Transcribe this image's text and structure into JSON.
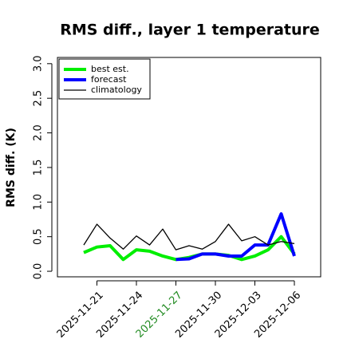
{
  "chart_data": {
    "type": "line",
    "title": "RMS diff., layer 1 temperature",
    "y_label": "RMS diff. (K)",
    "x": [
      "2025-11-20",
      "2025-11-21",
      "2025-11-22",
      "2025-11-23",
      "2025-11-24",
      "2025-11-25",
      "2025-11-26",
      "2025-11-27",
      "2025-11-28",
      "2025-11-29",
      "2025-11-30",
      "2025-12-01",
      "2025-12-02",
      "2025-12-03",
      "2025-12-04",
      "2025-12-05",
      "2025-12-06"
    ],
    "series": [
      {
        "name": "best est.",
        "color": "#00ee00",
        "width": 4,
        "values": [
          0.27,
          0.35,
          0.37,
          0.17,
          0.31,
          0.29,
          0.22,
          0.17,
          0.2,
          0.25,
          0.25,
          0.23,
          0.17,
          0.22,
          0.31,
          0.5,
          0.25
        ]
      },
      {
        "name": "forecast",
        "color": "#0000ff",
        "width": 4,
        "values": [
          null,
          null,
          null,
          null,
          null,
          null,
          null,
          0.17,
          0.18,
          0.25,
          0.25,
          0.22,
          0.22,
          0.38,
          0.38,
          0.83,
          0.22
        ]
      },
      {
        "name": "climatology",
        "color": "#000000",
        "width": 1.3,
        "values": [
          0.38,
          0.68,
          0.48,
          0.32,
          0.51,
          0.38,
          0.61,
          0.31,
          0.37,
          0.32,
          0.43,
          0.68,
          0.44,
          0.5,
          0.38,
          0.43,
          0.4
        ]
      }
    ],
    "xlim": [
      "2025-11-18",
      "2025-12-08"
    ],
    "xticks": [
      "2025-11-21",
      "2025-11-24",
      "2025-11-27",
      "2025-11-30",
      "2025-12-03",
      "2025-12-06"
    ],
    "xtick_colors": [
      "#000000",
      "#000000",
      "#228b22",
      "#000000",
      "#000000",
      "#000000"
    ],
    "ylim": [
      -0.08,
      3.09
    ],
    "yticks": [
      {
        "value": 0,
        "label": "0.0"
      },
      {
        "value": 0.5,
        "label": "0.5"
      },
      {
        "value": 1,
        "label": "1.0"
      },
      {
        "value": 1.5,
        "label": "1.5"
      },
      {
        "value": 2,
        "label": "2.0"
      },
      {
        "value": 2.5,
        "label": "2.5"
      },
      {
        "value": 3,
        "label": "3.0"
      }
    ],
    "legend": "top-left"
  }
}
